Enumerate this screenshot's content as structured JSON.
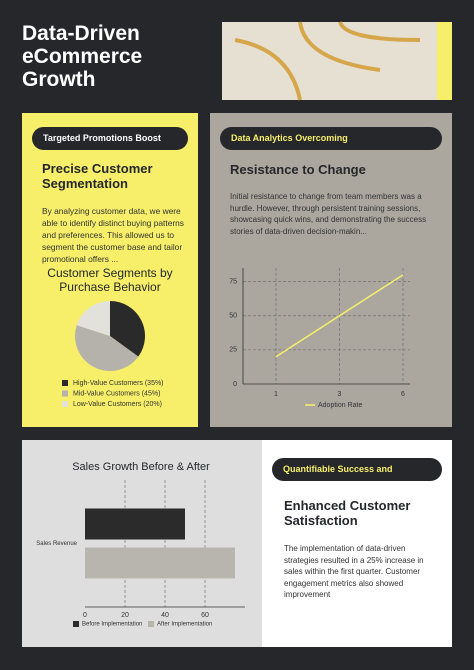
{
  "header": {
    "title": "Data-Driven eCommerce Growth"
  },
  "panels": [
    {
      "tag": "Targeted Promotions Boost",
      "heading": "Precise Customer Segmentation",
      "body": "By analyzing customer data, we were able to identify distinct buying patterns and preferences. This allowed us to segment the customer base and tailor promotional offers ..."
    },
    {
      "tag": "Data Analytics Overcoming",
      "heading": "Resistance to Change",
      "body": "Initial resistance to change from team members was a hurdle.  However, through persistent training sessions, showcasing quick wins, and demonstrating the success stories of data-driven decision-makin..."
    },
    {
      "tag": "Quantifiable Success and",
      "heading": "Enhanced Customer Satisfaction",
      "body": "The implementation of data-driven strategies resulted in a 25% increase in sales within the first quarter. Customer engagement metrics also showed improvement"
    }
  ],
  "chart_data": [
    {
      "type": "pie",
      "title": "Customer Segments by Purchase Behavior",
      "categories": [
        "High-Value Customers (35%)",
        "Mid-Value Customers (45%)",
        "Low-Value Customers (20%)"
      ],
      "values": [
        35,
        45,
        20
      ],
      "colors": [
        "#2a2a2a",
        "#b5b2ab",
        "#e2e1dc"
      ]
    },
    {
      "type": "line",
      "categories": [
        "1",
        "3",
        "6"
      ],
      "series": [
        {
          "name": "Adoption Rate",
          "color": "#f7ef6a",
          "values": [
            20,
            50,
            80
          ]
        }
      ],
      "ylim": [
        0,
        85
      ],
      "yticks": [
        0,
        25,
        50,
        75
      ],
      "grid": true
    },
    {
      "type": "barh",
      "title": "Sales Growth Before & After",
      "categories": [
        "Sales Revenue"
      ],
      "series": [
        {
          "name": "Before Implementation",
          "color": "#2b2b2b",
          "values": [
            50
          ]
        },
        {
          "name": "After Implementation",
          "color": "#b8b5ae",
          "values": [
            75
          ]
        }
      ],
      "xlim": [
        0,
        80
      ],
      "xticks": [
        0,
        20,
        40,
        60
      ],
      "grid": true
    }
  ]
}
